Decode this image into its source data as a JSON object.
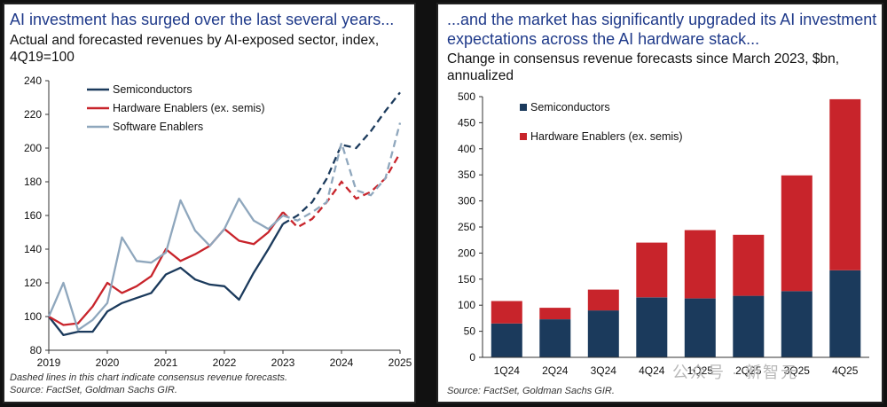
{
  "left": {
    "title": "AI investment has surged over the last several years...",
    "subtitle": "Actual and forecasted revenues by AI-exposed sector, index, 4Q19=100",
    "footnote1": "Dashed lines in this chart indicate consensus revenue forecasts.",
    "footnote2": "Source: FactSet, Goldman Sachs GIR."
  },
  "right": {
    "title_line1": "...and the market has significantly upgraded its AI investment",
    "title_line2": "expectations across the AI hardware stack...",
    "subtitle": "Change in consensus revenue forecasts since March 2023, $bn, annualized",
    "footnote": "Source: FactSet, Goldman Sachs GIR.",
    "watermark": "公众号 · 新智元"
  },
  "colors": {
    "semis": "#1b3a5c",
    "hardware": "#c8242b",
    "software": "#8fa7bd",
    "title": "#1f3a8a"
  },
  "chart_data": [
    {
      "type": "line",
      "title": "Actual and forecasted revenues by AI-exposed sector, index, 4Q19=100",
      "xlim": [
        2019,
        2025
      ],
      "ylim": [
        80,
        240
      ],
      "xticks": [
        2019,
        2020,
        2021,
        2022,
        2023,
        2024,
        2025
      ],
      "yticks": [
        80,
        100,
        120,
        140,
        160,
        180,
        200,
        220,
        240
      ],
      "forecast_start": 2023,
      "series": [
        {
          "name": "Semiconductors",
          "color": "#1b3a5c",
          "x": [
            2019,
            2019.25,
            2019.5,
            2019.75,
            2020,
            2020.25,
            2020.5,
            2020.75,
            2021,
            2021.25,
            2021.5,
            2021.75,
            2022,
            2022.25,
            2022.5,
            2022.75,
            2023,
            2023.25,
            2023.5,
            2023.75,
            2024,
            2024.25,
            2024.5,
            2024.75,
            2025
          ],
          "y": [
            100,
            89,
            91,
            91,
            103,
            108,
            111,
            114,
            125,
            129,
            122,
            119,
            118,
            110,
            126,
            140,
            155,
            160,
            168,
            182,
            202,
            200,
            210,
            222,
            233
          ]
        },
        {
          "name": "Hardware Enablers (ex. semis)",
          "color": "#c8242b",
          "x": [
            2019,
            2019.25,
            2019.5,
            2019.75,
            2020,
            2020.25,
            2020.5,
            2020.75,
            2021,
            2021.25,
            2021.5,
            2021.75,
            2022,
            2022.25,
            2022.5,
            2022.75,
            2023,
            2023.25,
            2023.5,
            2023.75,
            2024,
            2024.25,
            2024.5,
            2024.75,
            2025
          ],
          "y": [
            100,
            95,
            96,
            106,
            120,
            114,
            118,
            124,
            140,
            133,
            137,
            142,
            152,
            145,
            143,
            150,
            162,
            153,
            158,
            168,
            180,
            170,
            174,
            182,
            197
          ]
        },
        {
          "name": "Software Enablers",
          "color": "#8fa7bd",
          "x": [
            2019,
            2019.25,
            2019.5,
            2019.75,
            2020,
            2020.25,
            2020.5,
            2020.75,
            2021,
            2021.25,
            2021.5,
            2021.75,
            2022,
            2022.25,
            2022.5,
            2022.75,
            2023,
            2023.25,
            2023.5,
            2023.75,
            2024,
            2024.25,
            2024.5,
            2024.75,
            2025
          ],
          "y": [
            100,
            120,
            92,
            98,
            108,
            147,
            133,
            132,
            138,
            169,
            151,
            142,
            152,
            170,
            157,
            152,
            160,
            157,
            162,
            168,
            203,
            175,
            172,
            182,
            215
          ]
        }
      ]
    },
    {
      "type": "bar",
      "stacked": true,
      "categories": [
        "1Q24",
        "2Q24",
        "3Q24",
        "4Q24",
        "1Q25",
        "2Q25",
        "3Q25",
        "4Q25"
      ],
      "ylim": [
        0,
        500
      ],
      "yticks": [
        0,
        50,
        100,
        150,
        200,
        250,
        300,
        350,
        400,
        450,
        500
      ],
      "series": [
        {
          "name": "Semiconductors",
          "color": "#1b3a5c",
          "values": [
            65,
            73,
            90,
            115,
            113,
            118,
            127,
            167
          ]
        },
        {
          "name": "Hardware Enablers (ex. semis)",
          "color": "#c8242b",
          "values": [
            43,
            22,
            40,
            105,
            131,
            117,
            222,
            328
          ]
        }
      ]
    }
  ]
}
